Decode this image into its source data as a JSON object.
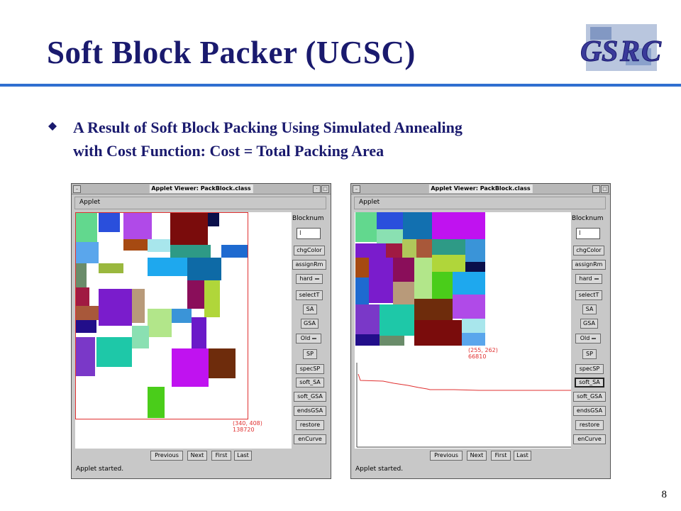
{
  "slide": {
    "title": "Soft Block Packer (UCSC)",
    "bullet_line1": "A Result of Soft Block Packing Using Simulated Annealing",
    "bullet_line2": "with Cost Function: Cost = Total Packing Area",
    "page_number": "8",
    "logo_text": "GSRC"
  },
  "colors": {
    "title": "#1a1a6e",
    "rule": "#2f6fd0",
    "outline": "#e03030"
  },
  "left_window": {
    "title": "Applet Viewer: PackBlock.class",
    "menu": "Applet",
    "annotation_dims": "(340, 408)",
    "annotation_cost": "138720",
    "status": "Applet started."
  },
  "right_window": {
    "title": "Applet Viewer: PackBlock.class",
    "menu": "Applet",
    "annotation_dims": "(255, 262)",
    "annotation_cost": "66810",
    "status": "Applet started."
  },
  "sidebar": {
    "blocknum_label": "Blocknum",
    "blocknum_value": "I",
    "buttons": [
      "chgColor",
      "assignRm",
      "hard",
      "selectT",
      "SA",
      "GSA",
      "Old",
      "SP",
      "specSP",
      "soft_SA",
      "soft_GSA",
      "endsGSA",
      "restore",
      "enCurve"
    ]
  },
  "nav": {
    "previous": "Previous",
    "next": "Next",
    "first": "First",
    "last": "Last"
  }
}
